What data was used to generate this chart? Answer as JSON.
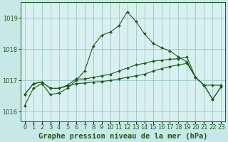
{
  "title": "Graphe pression niveau de la mer (hPa)",
  "bg_color": "#c8e8e8",
  "plot_bg_color": "#d8f0f0",
  "grid_color": "#90c0b8",
  "line_color": "#1a5c1a",
  "x_labels": [
    "0",
    "1",
    "2",
    "3",
    "4",
    "5",
    "6",
    "7",
    "8",
    "9",
    "10",
    "11",
    "12",
    "13",
    "14",
    "15",
    "16",
    "17",
    "18",
    "19",
    "20",
    "21",
    "22",
    "23"
  ],
  "ylim": [
    1015.7,
    1019.5
  ],
  "yticks": [
    1016,
    1017,
    1018,
    1019
  ],
  "s1": [
    1016.2,
    1016.75,
    1016.9,
    1016.55,
    1016.6,
    1016.75,
    1017.0,
    1017.3,
    1018.1,
    1018.45,
    1018.55,
    1018.75,
    1019.2,
    1018.9,
    1018.5,
    1018.2,
    1018.05,
    1017.95,
    1017.75,
    1017.6,
    1017.1,
    1016.85,
    1016.4,
    1016.8
  ],
  "s2": [
    1016.55,
    1016.9,
    1016.95,
    1016.75,
    1016.75,
    1016.85,
    1017.05,
    1017.05,
    1017.1,
    1017.15,
    1017.2,
    1017.3,
    1017.4,
    1017.5,
    1017.55,
    1017.62,
    1017.65,
    1017.68,
    1017.7,
    1017.75,
    1017.1,
    1016.85,
    1016.85,
    1016.85
  ],
  "s3": [
    1016.55,
    1016.9,
    1016.95,
    1016.75,
    1016.75,
    1016.82,
    1016.9,
    1016.92,
    1016.95,
    1016.97,
    1017.0,
    1017.05,
    1017.1,
    1017.15,
    1017.2,
    1017.3,
    1017.38,
    1017.45,
    1017.5,
    1017.55,
    1017.1,
    1016.85,
    1016.4,
    1016.8
  ],
  "title_fontsize": 7.5,
  "tick_fontsize": 6
}
